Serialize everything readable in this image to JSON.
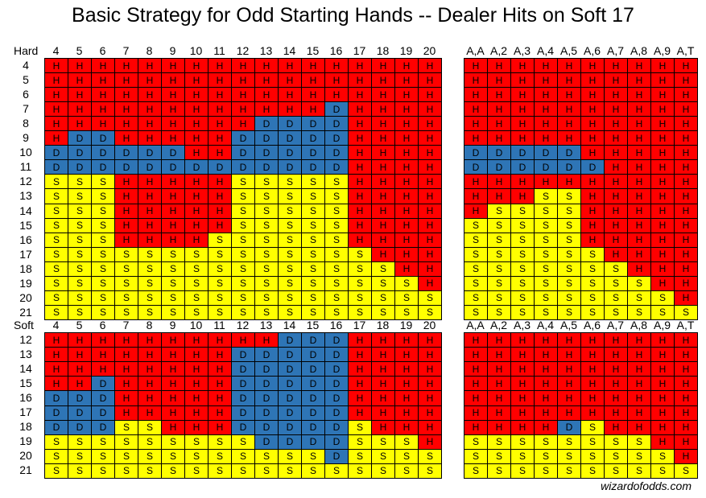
{
  "chart_data": {
    "type": "table",
    "title": "Basic Strategy for Odd Starting Hands -- Dealer Hits on Soft 17",
    "colors": {
      "H": "#ff0000",
      "D": "#2e75b6",
      "S": "#ffff00"
    },
    "tables": [
      {
        "corner": "Hard",
        "columns": [
          "4",
          "5",
          "6",
          "7",
          "8",
          "9",
          "10",
          "11",
          "12",
          "13",
          "14",
          "15",
          "16",
          "17",
          "18",
          "19",
          "20"
        ],
        "rows": [
          "4",
          "5",
          "6",
          "7",
          "8",
          "9",
          "10",
          "11",
          "12",
          "13",
          "14",
          "15",
          "16",
          "17",
          "18",
          "19",
          "20",
          "21"
        ],
        "cells": [
          "HHHHHHHHHHHHHHHHH",
          "HHHHHHHHHHHHHHHHH",
          "HHHHHHHHHHHHHHHHH",
          "HHHHHHHHHHHHDHHHH",
          "HHHHHHHHHDDDDHHHH",
          "HDDHHHHHDDDDDHHHH",
          "DDDDDDHHDDDDDHHHH",
          "DDDDDDDDDDDDDHHHH",
          "SSSHHHHHSSSSSHHHH",
          "SSSHHHHHSSSSSHHHH",
          "SSSHHHHHSSSSSHHHH",
          "SSSHHHHHSSSSSHHHH",
          "SSSHHHHSSSSSSHHHH",
          "SSSSSSSSSSSSSSHHH",
          "SSSSSSSSSSSSSSSHH",
          "SSSSSSSSSSSSSSSSH",
          "SSSSSSSSSSSSSSSSS",
          "SSSSSSSSSSSSSSSSS"
        ]
      },
      {
        "columns": [
          "A,A",
          "A,2",
          "A,3",
          "A,4",
          "A,5",
          "A,6",
          "A,7",
          "A,8",
          "A,9",
          "A,T"
        ],
        "cells": [
          "HHHHHHHHHH",
          "HHHHHHHHHH",
          "HHHHHHHHHH",
          "HHHHHHHHHH",
          "HHHHHHHHHH",
          "HHHHHHHHHH",
          "DDDDDHHHHH",
          "DDDDDDHHHH",
          "HHHHHHHHHH",
          "HHHSSHHHHH",
          "HSSSSHHHHH",
          "SSSSSHHHHH",
          "SSSSSHHHHH",
          "SSSSSSHHHH",
          "SSSSSSSHHH",
          "SSSSSSSSHH",
          "SSSSSSSSSH",
          "SSSSSSSSSS"
        ]
      },
      {
        "corner": "Soft",
        "columns": [
          "4",
          "5",
          "6",
          "7",
          "8",
          "9",
          "10",
          "11",
          "12",
          "13",
          "14",
          "15",
          "16",
          "17",
          "18",
          "19",
          "20"
        ],
        "rows": [
          "12",
          "13",
          "14",
          "15",
          "16",
          "17",
          "18",
          "19",
          "20",
          "21"
        ],
        "cells": [
          "HHHHHHHHHHDDDHHHH",
          "HHHHHHHHDDDDDHHHH",
          "HHHHHHHHDDDDDHHHH",
          "HHDHHHHHDDDDDHHHH",
          "DDDHHHHHDDDDDHHHH",
          "DDDHHHHHDDDDDHHHH",
          "DDDSSHHHDDDDDSHHH",
          "SSSSSSSSSDDDDSSSH",
          "SSSSSSSSSSSSDSSSS",
          "SSSSSSSSSSSSSSSSS"
        ]
      },
      {
        "columns": [
          "A,A",
          "A,2",
          "A,3",
          "A,4",
          "A,5",
          "A,6",
          "A,7",
          "A,8",
          "A,9",
          "A,T"
        ],
        "cells": [
          "HHHHHHHHHH",
          "HHHHHHHHHH",
          "HHHHHHHHHH",
          "HHHHHHHHHH",
          "HHHHHHHHHH",
          "HHHHHHHHHH",
          "HHHHDSHHHH",
          "SSSSSSSSHH",
          "SSSSSSSSSH",
          "SSSSSSSSSS"
        ]
      }
    ]
  },
  "credit": "wizardofodds.com"
}
